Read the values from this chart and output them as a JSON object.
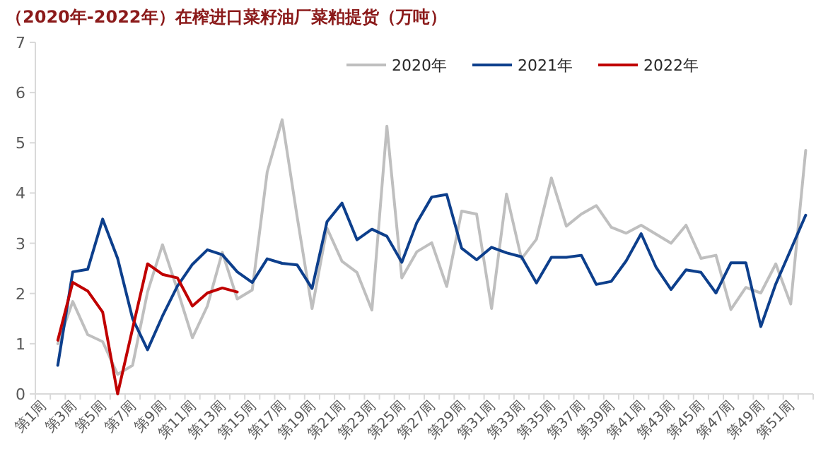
{
  "chart_data": {
    "type": "line",
    "title": "（2020年-2022年）在榨进口菜籽油厂菜粕提货（万吨）",
    "categories": [
      "第1周",
      null,
      "第3周",
      null,
      "第5周",
      null,
      "第7周",
      null,
      "第9周",
      null,
      "第11周",
      null,
      "第13周",
      null,
      "第15周",
      null,
      "第17周",
      null,
      "第19周",
      null,
      "第21周",
      null,
      "第23周",
      null,
      "第25周",
      null,
      "第27周",
      null,
      "第29周",
      null,
      "第31周",
      null,
      "第33周",
      null,
      "第35周",
      null,
      "第37周",
      null,
      "第39周",
      null,
      "第41周",
      null,
      "第43周",
      null,
      "第45周",
      null,
      "第47周",
      null,
      "第49周",
      null,
      "第51周",
      null
    ],
    "series": [
      {
        "name": "2020年",
        "color": "#bfbfbf",
        "values": [
          null,
          1.0,
          1.84,
          1.18,
          1.04,
          0.39,
          0.57,
          2.03,
          2.97,
          2.07,
          1.12,
          1.75,
          2.82,
          1.89,
          2.07,
          4.42,
          5.46,
          3.53,
          1.7,
          3.3,
          2.64,
          2.42,
          1.67,
          5.33,
          2.31,
          2.83,
          3.01,
          2.14,
          3.64,
          3.58,
          1.7,
          3.98,
          2.69,
          3.08,
          4.3,
          3.34,
          3.58,
          3.75,
          3.32,
          3.2,
          3.36,
          3.18,
          3.0,
          3.36,
          2.7,
          2.76,
          1.68,
          2.12,
          2.01,
          2.59,
          1.79,
          4.85
        ]
      },
      {
        "name": "2021年",
        "color": "#0d3f8c",
        "values": [
          null,
          0.57,
          2.43,
          2.48,
          3.48,
          2.7,
          1.5,
          0.88,
          1.55,
          2.15,
          2.58,
          2.87,
          2.77,
          2.43,
          2.22,
          2.69,
          2.6,
          2.57,
          2.1,
          3.43,
          3.8,
          3.07,
          3.28,
          3.14,
          2.62,
          3.41,
          3.92,
          3.97,
          2.9,
          2.67,
          2.92,
          2.81,
          2.73,
          2.21,
          2.72,
          2.72,
          2.76,
          2.18,
          2.24,
          2.65,
          3.19,
          2.52,
          2.08,
          2.47,
          2.42,
          2.01,
          2.61,
          2.61,
          1.34,
          2.19,
          2.87,
          3.56
        ]
      },
      {
        "name": "2022年",
        "color": "#c00000",
        "values": [
          null,
          1.07,
          2.22,
          2.05,
          1.63,
          0,
          1.3,
          2.59,
          2.38,
          2.31,
          1.75,
          2.01,
          2.11,
          2.03,
          null,
          null,
          null,
          null,
          null,
          null,
          null,
          null,
          null,
          null,
          null,
          null,
          null,
          null,
          null,
          null,
          null,
          null,
          null,
          null,
          null,
          null,
          null,
          null,
          null,
          null,
          null,
          null,
          null,
          null,
          null,
          null,
          null,
          null,
          null,
          null,
          null,
          null
        ]
      }
    ],
    "ylim": [
      0,
      7
    ],
    "yticks": [
      0,
      1,
      2,
      3,
      4,
      5,
      6,
      7
    ],
    "legend": "top right"
  }
}
